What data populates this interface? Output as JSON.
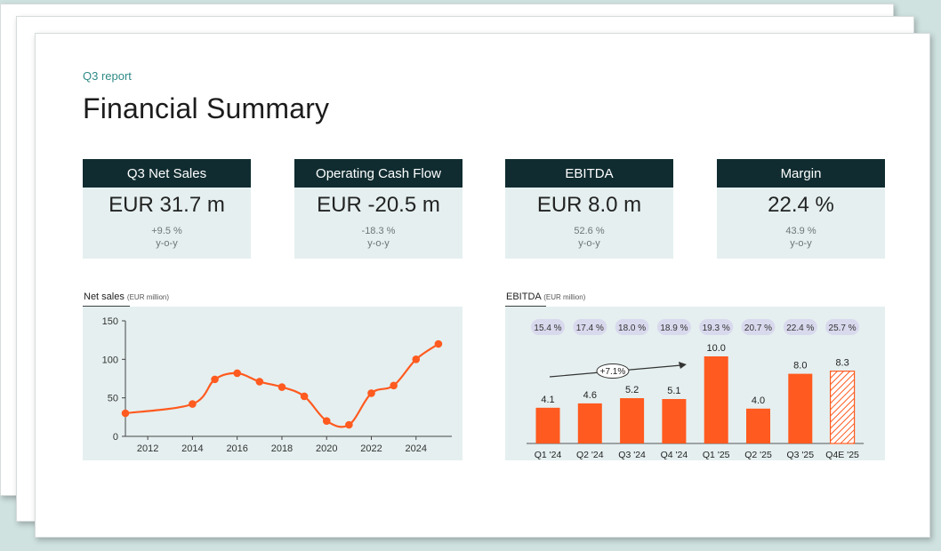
{
  "header": {
    "eyebrow": "Q3 report",
    "title": "Financial Summary"
  },
  "kpis": [
    {
      "label": "Q3 Net Sales",
      "value": "EUR 31.7 m",
      "change": "+9.5 %",
      "note": "y-o-y"
    },
    {
      "label": "Operating Cash Flow",
      "value": "EUR -20.5 m",
      "change": "-18.3 %",
      "note": "y-o-y"
    },
    {
      "label": "EBITDA",
      "value": "EUR 8.0 m",
      "change": "52.6 %",
      "note": "y-o-y"
    },
    {
      "label": "Margin",
      "value": "22.4 %",
      "change": "43.9 %",
      "note": "y-o-y"
    }
  ],
  "colors": {
    "accent": "#ff5a1f",
    "header_bg": "#102c30",
    "panel_bg": "#e5efef",
    "teal_text": "#2f8a86",
    "margin_chip": "#d9d9ee"
  },
  "chart_data": [
    {
      "type": "line",
      "title": "Net sales",
      "title_unit": "(EUR million)",
      "x": [
        2011,
        2014,
        2015,
        2016,
        2017,
        2018,
        2019,
        2020,
        2021,
        2022,
        2023,
        2024,
        2025
      ],
      "values": [
        30,
        42,
        74,
        82,
        71,
        64,
        52,
        20,
        15,
        56,
        66,
        100,
        120
      ],
      "x_ticks": [
        2012,
        2014,
        2016,
        2018,
        2020,
        2022,
        2024
      ],
      "y_ticks": [
        0,
        50,
        100,
        150
      ],
      "ylim": [
        0,
        150
      ],
      "xlim": [
        2011,
        2025.6
      ]
    },
    {
      "type": "bar",
      "title": "EBITDA",
      "title_unit": "(EUR million)",
      "categories": [
        "Q1 '24",
        "Q2 '24",
        "Q3 '24",
        "Q4 '24",
        "Q1 '25",
        "Q2 '25",
        "Q3 '25",
        "Q4E '25"
      ],
      "values": [
        4.1,
        4.6,
        5.2,
        5.1,
        10.0,
        4.0,
        8.0,
        8.3
      ],
      "value_labels": [
        "4.1",
        "4.6",
        "5.2",
        "5.1",
        "10.0",
        "4.0",
        "8.0",
        "8.3"
      ],
      "margins": [
        "15.4 %",
        "17.4 %",
        "18.0 %",
        "18.9 %",
        "19.3 %",
        "20.7 %",
        "22.4 %",
        "25.7 %"
      ],
      "estimate_index": 7,
      "annotation": "+7.1%",
      "ylim": [
        0,
        10
      ]
    }
  ]
}
